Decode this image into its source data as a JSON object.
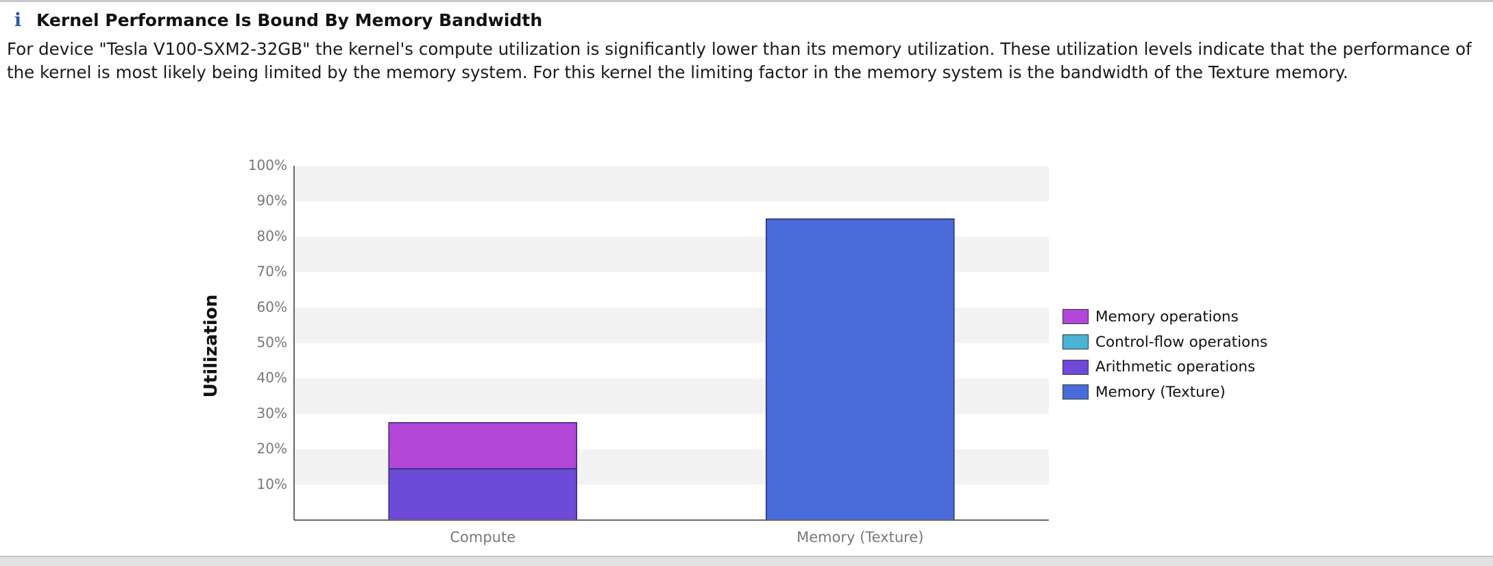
{
  "header": {
    "icon": "info-icon",
    "icon_glyph": "i",
    "title": "Kernel Performance Is Bound By Memory Bandwidth"
  },
  "description": "For device \"Tesla V100-SXM2-32GB\" the kernel's compute utilization is significantly lower than its memory utilization. These utilization levels indicate that the performance of the kernel is most likely being limited by the memory system. For this kernel the limiting factor in the memory system is the bandwidth of the Texture memory.",
  "chart_data": {
    "type": "bar",
    "stacked": true,
    "ylabel": "Utilization",
    "xlabel": "",
    "ylim": [
      0,
      100
    ],
    "yticks": [
      "10%",
      "20%",
      "30%",
      "40%",
      "50%",
      "60%",
      "70%",
      "80%",
      "90%",
      "100%"
    ],
    "grid": "alternating horizontal bands",
    "legend_position": "right",
    "categories": [
      "Compute",
      "Memory (Texture)"
    ],
    "series": [
      {
        "name": "Memory operations",
        "color": "#b347d9",
        "values": [
          13,
          0
        ]
      },
      {
        "name": "Control-flow operations",
        "color": "#4ab3d8",
        "values": [
          0,
          0
        ]
      },
      {
        "name": "Arithmetic operations",
        "color": "#6e4ad8",
        "values": [
          14.5,
          0
        ]
      },
      {
        "name": "Memory (Texture)",
        "color": "#4a6cdb",
        "values": [
          0,
          85
        ]
      }
    ]
  }
}
